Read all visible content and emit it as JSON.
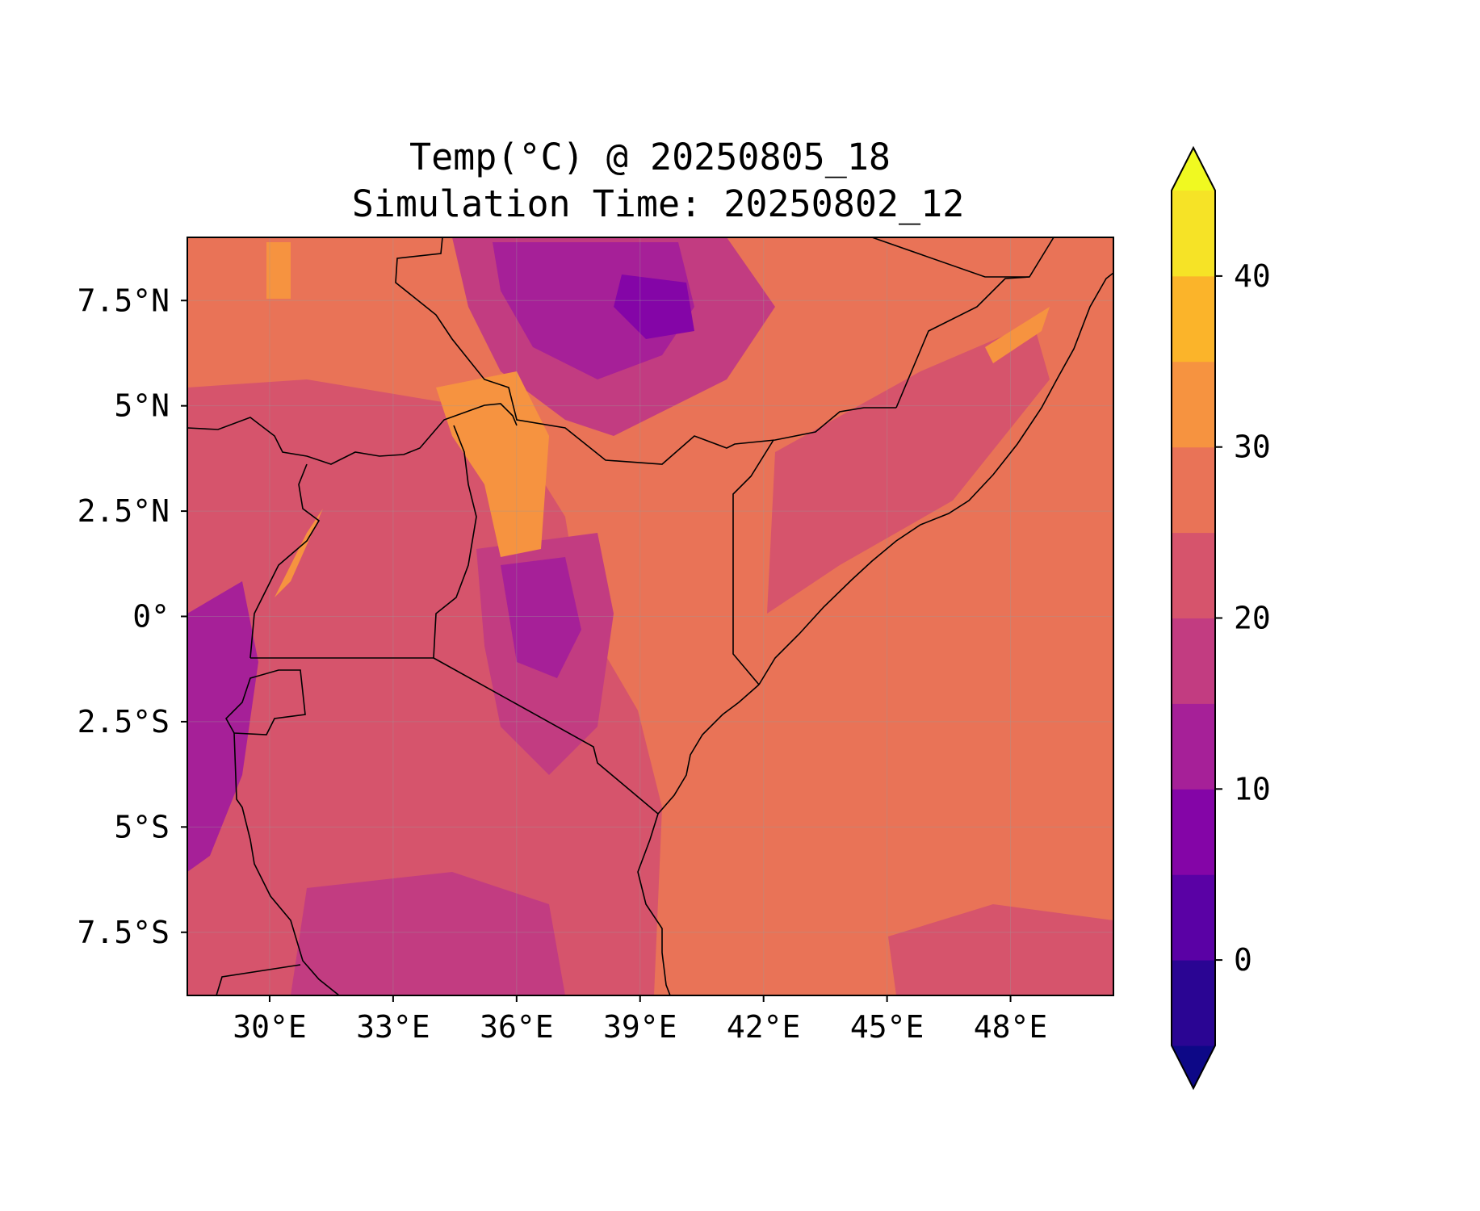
{
  "title_line1": "Temp(°C) @ 20250805_18",
  "title_line2": "Simulation Time: 20250802_12",
  "map": {
    "lon_range": [
      28,
      50.5
    ],
    "lat_range": [
      -9,
      9
    ],
    "x_ticks": [
      "30°E",
      "33°E",
      "36°E",
      "39°E",
      "42°E",
      "45°E",
      "48°E"
    ],
    "y_ticks": [
      "7.5°N",
      "5°N",
      "2.5°N",
      "0°",
      "2.5°S",
      "5°S",
      "7.5°S"
    ],
    "gridlines": true,
    "ocean_fill_color": "#e97357",
    "land_fill_color": "#d6546c",
    "border_color": "#000000"
  },
  "colorbar": {
    "orientation": "vertical",
    "placement": "right",
    "extend": "both",
    "levels": [
      -5,
      0,
      5,
      10,
      15,
      20,
      25,
      30,
      35,
      40,
      45
    ],
    "tick_labels": [
      "0",
      "10",
      "20",
      "30",
      "40"
    ],
    "colors": [
      "#0d0887",
      "#2a0593",
      "#5a01a5",
      "#8405a7",
      "#a62098",
      "#c23c81",
      "#d6546c",
      "#e97357",
      "#f69340",
      "#fbb42a",
      "#f6e326",
      "#f0f921"
    ]
  }
}
